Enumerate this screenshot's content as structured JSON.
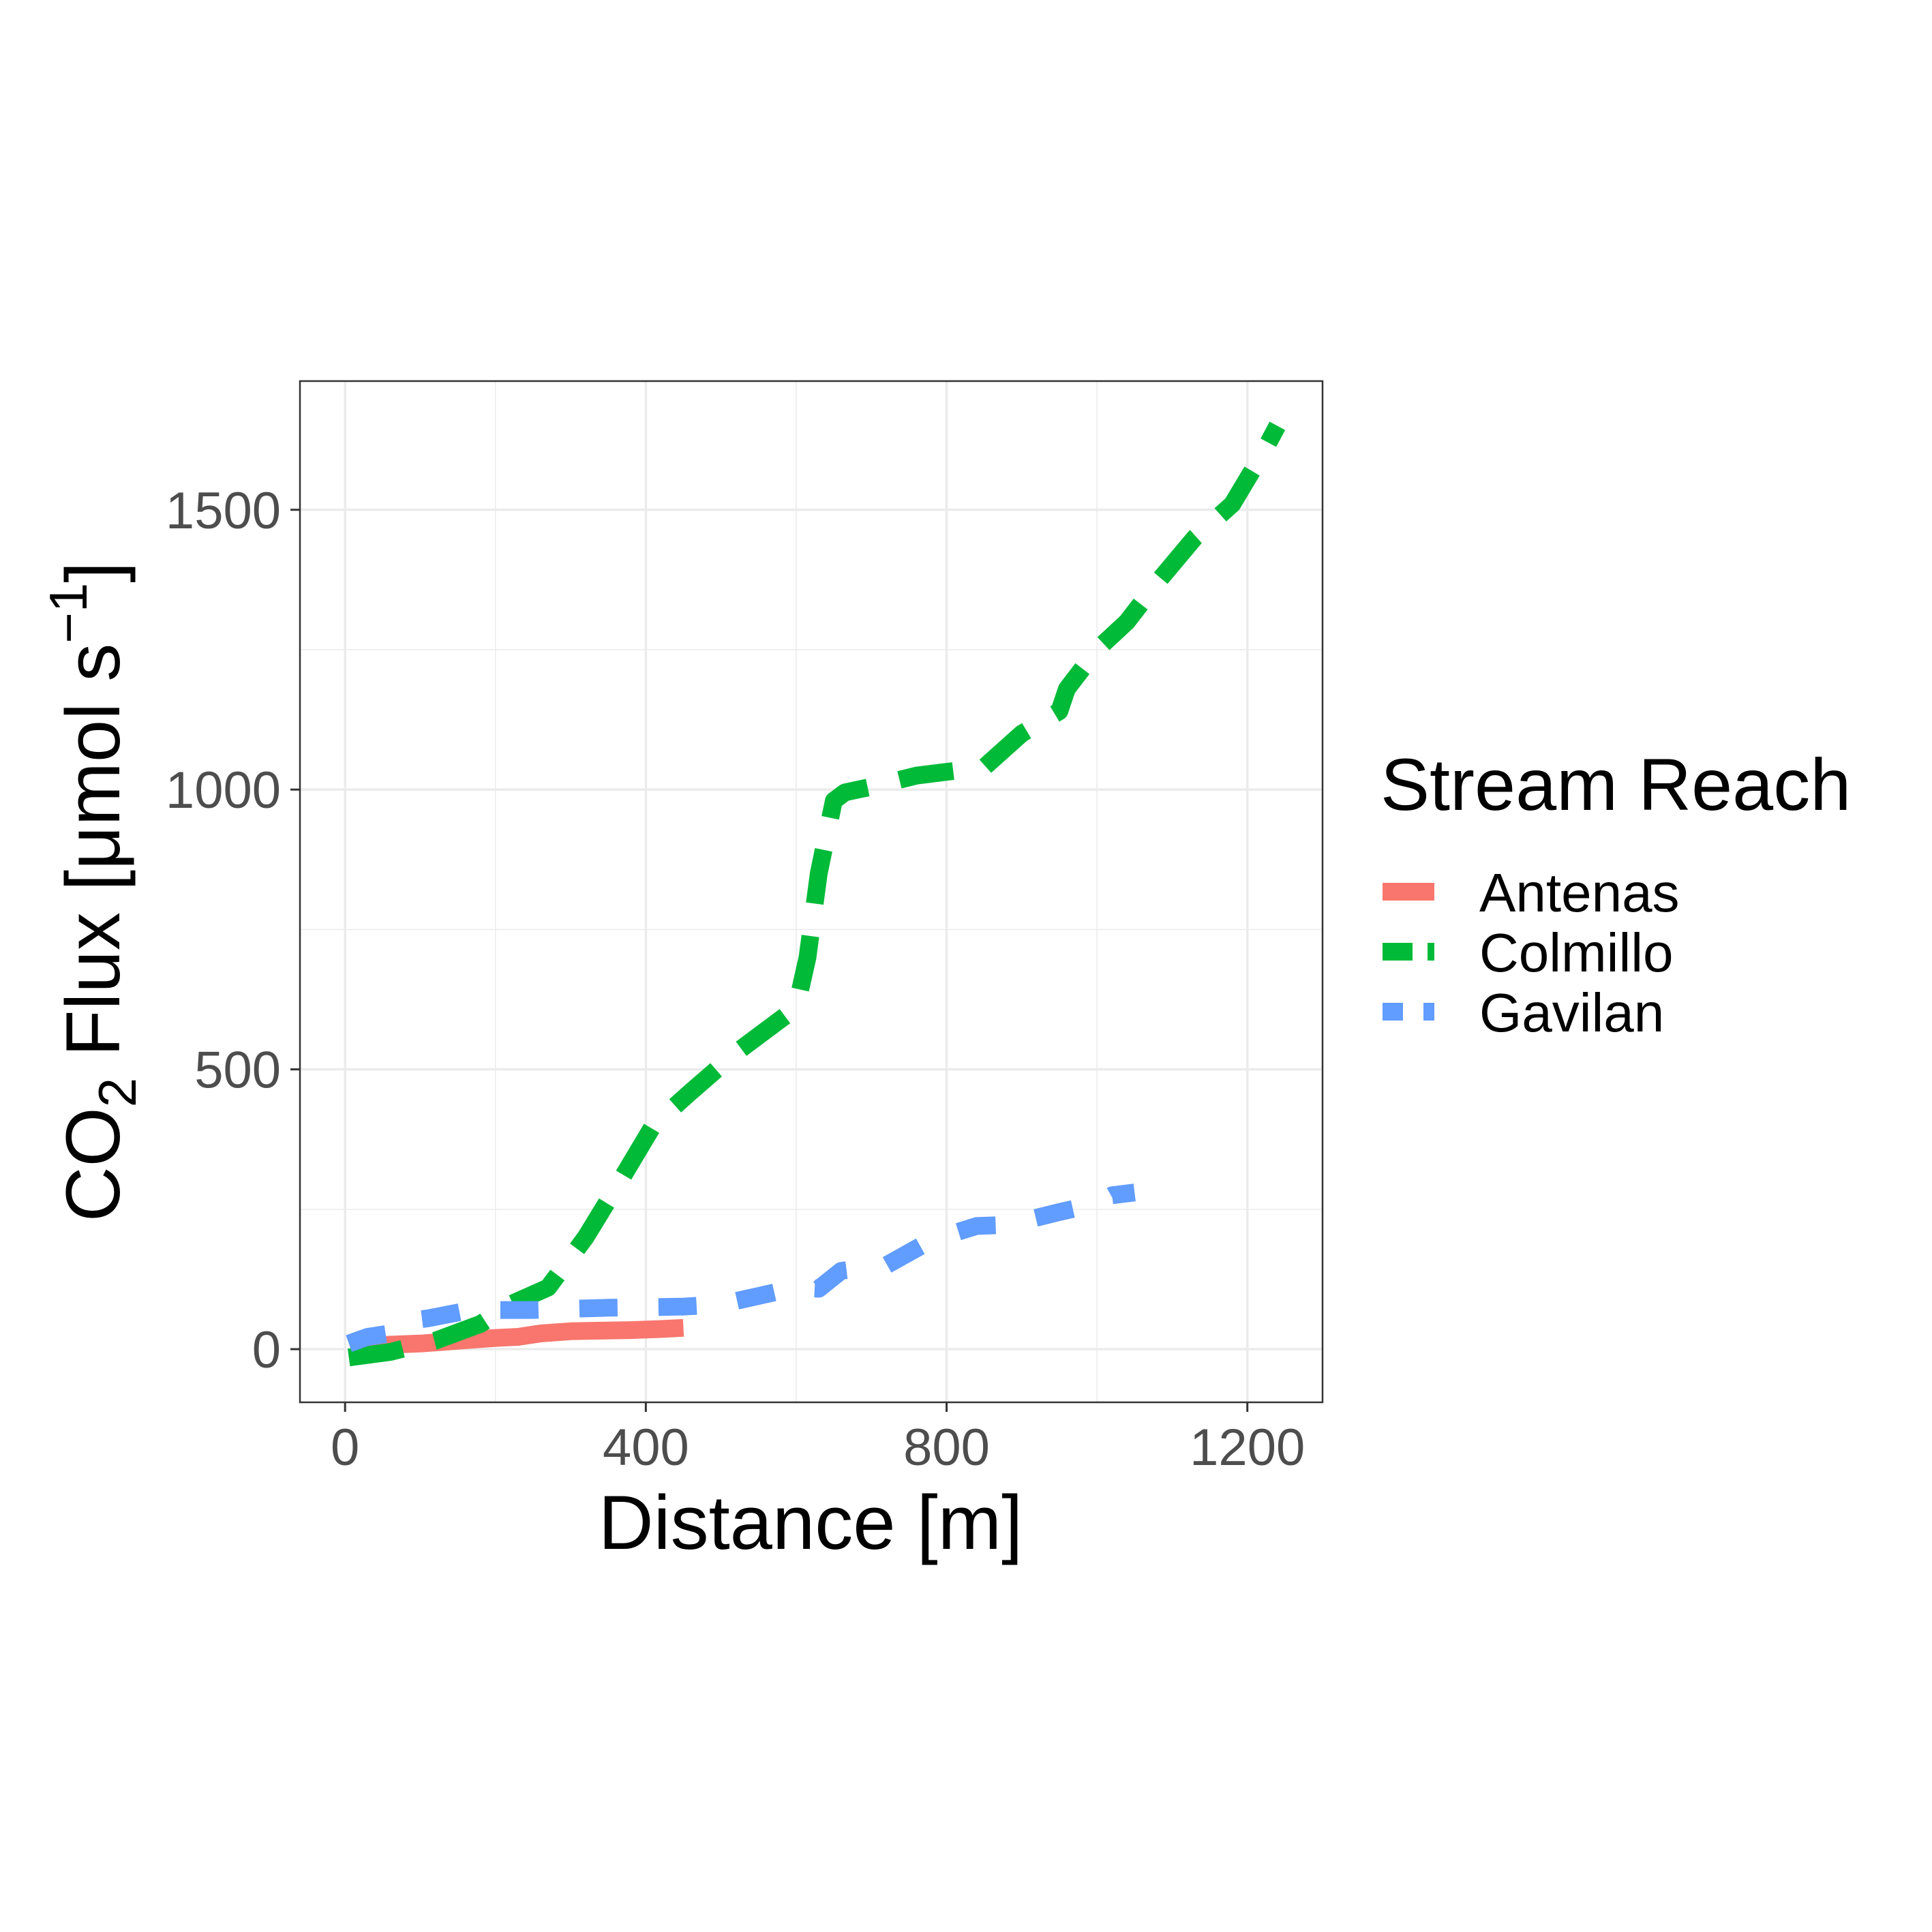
{
  "chart_data": {
    "type": "line",
    "title": "",
    "xlabel": "Distance [m]",
    "ylabel": {
      "prefix": "CO",
      "sub": "2",
      "middle": " Flux [μmol s",
      "sup": "−1",
      "suffix": "]"
    },
    "xlim": [
      -60,
      1300
    ],
    "ylim": [
      -95,
      1730
    ],
    "xticks": [
      0,
      400,
      800,
      1200
    ],
    "yticks": [
      0,
      500,
      1000,
      1500
    ],
    "xtick_labels": [
      "0",
      "400",
      "800",
      "1200"
    ],
    "ytick_labels": [
      "0",
      "500",
      "1000",
      "1500"
    ],
    "grid": true,
    "legend": {
      "title": "Stream Reach",
      "position": "right"
    },
    "series": [
      {
        "name": "Antenas",
        "color": "#F8766D",
        "dash": "solid",
        "x": [
          10,
          60,
          100,
          150,
          200,
          230,
          260,
          300,
          340,
          380,
          420,
          450
        ],
        "y": [
          5,
          8,
          10,
          15,
          20,
          22,
          28,
          32,
          33,
          34,
          36,
          38
        ]
      },
      {
        "name": "Colmillo",
        "color": "#00BA38",
        "dash": "long",
        "x": [
          5,
          60,
          120,
          180,
          220,
          270,
          320,
          370,
          410,
          460,
          520,
          600,
          615,
          630,
          650,
          665,
          700,
          760,
          850,
          900,
          950,
          960,
          1000,
          1040,
          1080,
          1130,
          1180,
          1220,
          1240
        ],
        "y": [
          -15,
          -5,
          15,
          45,
          80,
          110,
          200,
          310,
          400,
          460,
          530,
          610,
          700,
          850,
          980,
          995,
          1005,
          1025,
          1040,
          1100,
          1140,
          1180,
          1250,
          1300,
          1370,
          1450,
          1510,
          1600,
          1650
        ]
      },
      {
        "name": "Gavilan",
        "color": "#619CFF",
        "dash": "medium",
        "x": [
          5,
          30,
          60,
          80,
          110,
          160,
          200,
          250,
          300,
          350,
          400,
          450,
          500,
          550,
          600,
          630,
          660,
          720,
          780,
          840,
          880,
          920,
          950,
          1000,
          1020,
          1050
        ],
        "y": [
          10,
          22,
          28,
          50,
          55,
          68,
          70,
          70,
          72,
          74,
          75,
          76,
          80,
          95,
          110,
          108,
          140,
          150,
          195,
          220,
          222,
          235,
          245,
          260,
          275,
          280
        ]
      }
    ]
  }
}
